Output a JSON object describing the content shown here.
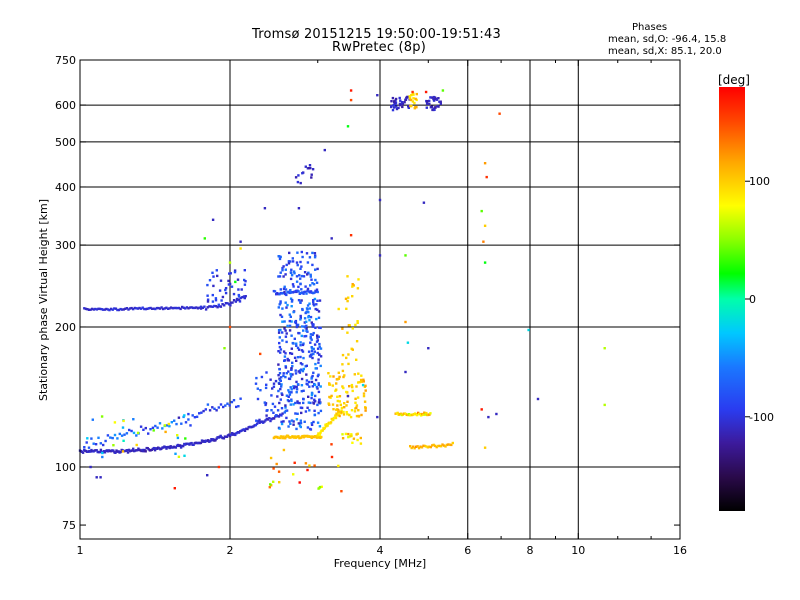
{
  "header": {
    "title_line1": "Tromsø 20151215 19:50:00-19:51:43",
    "title_line2": "RwPretec (8p)"
  },
  "stats": {
    "label": "Phases",
    "line_o": "mean, sd,O: -96.4, 15.8",
    "line_x": "mean, sd,X:  85.1, 20.0"
  },
  "chart_data": {
    "type": "scatter",
    "xlabel": "Frequency [MHz]",
    "ylabel": "Stationary phase Virtual Height [km]",
    "xscale": "log",
    "yscale": "log",
    "xlim": [
      1,
      16
    ],
    "ylim": [
      70,
      750
    ],
    "x_ticks": [
      1,
      2,
      4,
      6,
      8,
      10,
      16
    ],
    "x_tick_labels": [
      "1",
      "2",
      "4",
      "6",
      "8",
      "10",
      "16"
    ],
    "x_minor_ticks": [
      3,
      5,
      7,
      9,
      12,
      14
    ],
    "y_ticks": [
      75,
      100,
      200,
      300,
      400,
      500,
      600,
      750
    ],
    "y_tick_labels": [
      "75",
      "100",
      "200",
      "300",
      "400",
      "500",
      "600",
      "750"
    ],
    "x_gridlines": [
      2,
      4,
      6,
      8,
      10
    ],
    "y_gridlines": [
      100,
      200,
      300,
      400,
      500,
      600
    ],
    "grid": true,
    "colorbar": {
      "label": "[deg]",
      "min": -180,
      "max": 180,
      "ticks": [
        100,
        0,
        -100
      ],
      "tick_labels": [
        "100",
        "0",
        "-100"
      ]
    },
    "traces": [
      {
        "f0": 1.0,
        "f1": 2.05,
        "h0": 108,
        "h1": 118,
        "curve": 2.8,
        "n": 150,
        "jit": 0.012,
        "phase": -110,
        "pjit": 14
      },
      {
        "f0": 2.05,
        "f1": 2.55,
        "h0": 118,
        "h1": 130,
        "curve": 1.0,
        "n": 40,
        "jit": 0.015,
        "phase": -105,
        "pjit": 16
      },
      {
        "f0": 1.02,
        "f1": 1.75,
        "h0": 218,
        "h1": 220,
        "curve": 1.0,
        "n": 75,
        "jit": 0.008,
        "phase": -105,
        "pjit": 12
      },
      {
        "f0": 1.75,
        "f1": 2.15,
        "h0": 220,
        "h1": 232,
        "curve": 2.0,
        "n": 28,
        "jit": 0.012,
        "phase": -105,
        "pjit": 12
      },
      {
        "f0": 2.45,
        "f1": 3.0,
        "h0": 236,
        "h1": 238,
        "curve": 1.0,
        "n": 40,
        "jit": 0.015,
        "phase": -80,
        "pjit": 35
      },
      {
        "f0": 1.02,
        "f1": 1.65,
        "h0": 112,
        "h1": 126,
        "curve": 1.0,
        "n": 45,
        "jit": 0.035,
        "phase": -70,
        "pjit": 60
      },
      {
        "f0": 1.65,
        "f1": 2.1,
        "h0": 126,
        "h1": 140,
        "curve": 1.0,
        "n": 25,
        "jit": 0.04,
        "phase": -90,
        "pjit": 30
      },
      {
        "f0": 2.45,
        "f1": 3.05,
        "h0": 116,
        "h1": 116,
        "curve": 1.0,
        "n": 55,
        "jit": 0.008,
        "phase": 105,
        "pjit": 8
      },
      {
        "f0": 3.0,
        "f1": 3.35,
        "h0": 117,
        "h1": 132,
        "curve": 1.0,
        "n": 35,
        "jit": 0.015,
        "phase": 90,
        "pjit": 15
      },
      {
        "f0": 4.3,
        "f1": 5.05,
        "h0": 130,
        "h1": 130,
        "curve": 1.0,
        "n": 35,
        "jit": 0.01,
        "phase": 100,
        "pjit": 50
      },
      {
        "f0": 4.6,
        "f1": 5.6,
        "h0": 110,
        "h1": 112,
        "curve": 1.0,
        "n": 30,
        "jit": 0.012,
        "phase": 110,
        "pjit": 25
      }
    ],
    "clusters": [
      {
        "fmin": 2.5,
        "fmax": 3.05,
        "hmin": 120,
        "hmax": 230,
        "n": 340,
        "pmin": -115,
        "pmax": -45
      },
      {
        "fmin": 2.5,
        "fmax": 3.0,
        "hmin": 235,
        "hmax": 290,
        "n": 80,
        "pmin": -110,
        "pmax": -60
      },
      {
        "fmin": 2.25,
        "fmax": 2.55,
        "hmin": 125,
        "hmax": 160,
        "n": 35,
        "pmin": -110,
        "pmax": -70
      },
      {
        "fmin": 1.8,
        "fmax": 2.15,
        "hmin": 222,
        "hmax": 265,
        "n": 45,
        "pmin": -110,
        "pmax": -80
      },
      {
        "fmin": 3.15,
        "fmax": 3.75,
        "hmin": 128,
        "hmax": 160,
        "n": 90,
        "pmin": 85,
        "pmax": 120
      },
      {
        "fmin": 3.3,
        "fmax": 3.65,
        "hmin": 160,
        "hmax": 260,
        "n": 30,
        "pmin": 85,
        "pmax": 120
      },
      {
        "fmin": 3.35,
        "fmax": 3.7,
        "hmin": 112,
        "hmax": 118,
        "n": 16,
        "pmin": 70,
        "pmax": 120
      },
      {
        "fmin": 4.2,
        "fmax": 4.6,
        "hmin": 585,
        "hmax": 625,
        "n": 35,
        "pmin": -120,
        "pmax": -100
      },
      {
        "fmin": 4.55,
        "fmax": 4.75,
        "hmin": 590,
        "hmax": 635,
        "n": 18,
        "pmin": 80,
        "pmax": 120
      },
      {
        "fmin": 4.95,
        "fmax": 5.3,
        "hmin": 585,
        "hmax": 625,
        "n": 30,
        "pmin": -120,
        "pmax": -100
      },
      {
        "fmin": 2.7,
        "fmax": 3.0,
        "hmin": 400,
        "hmax": 450,
        "n": 14,
        "pmin": -120,
        "pmax": -100
      },
      {
        "fmin": 1.0,
        "fmax": 1.75,
        "hmin": 105,
        "hmax": 130,
        "n": 25,
        "pmin": -60,
        "pmax": 120
      },
      {
        "fmin": 2.4,
        "fmax": 3.4,
        "hmin": 88,
        "hmax": 112,
        "n": 25,
        "pmin": 40,
        "pmax": 180
      }
    ],
    "points": [
      {
        "x": 1.08,
        "y": 95,
        "p": -110
      },
      {
        "x": 1.1,
        "y": 95,
        "p": -110
      },
      {
        "x": 1.55,
        "y": 90,
        "p": 170
      },
      {
        "x": 1.8,
        "y": 96,
        "p": -110
      },
      {
        "x": 1.78,
        "y": 310,
        "p": 30
      },
      {
        "x": 1.85,
        "y": 340,
        "p": -110
      },
      {
        "x": 2.35,
        "y": 360,
        "p": -110
      },
      {
        "x": 2.1,
        "y": 295,
        "p": 90
      },
      {
        "x": 2.75,
        "y": 360,
        "p": -110
      },
      {
        "x": 3.1,
        "y": 480,
        "p": -110
      },
      {
        "x": 3.2,
        "y": 310,
        "p": -110
      },
      {
        "x": 3.5,
        "y": 315,
        "p": 160
      },
      {
        "x": 3.5,
        "y": 645,
        "p": 170
      },
      {
        "x": 3.45,
        "y": 540,
        "p": 20
      },
      {
        "x": 3.5,
        "y": 615,
        "p": 150
      },
      {
        "x": 3.95,
        "y": 630,
        "p": -110
      },
      {
        "x": 4.0,
        "y": 375,
        "p": -110
      },
      {
        "x": 4.0,
        "y": 285,
        "p": -110
      },
      {
        "x": 4.65,
        "y": 640,
        "p": 160
      },
      {
        "x": 4.95,
        "y": 640,
        "p": 170
      },
      {
        "x": 5.35,
        "y": 645,
        "p": 40
      },
      {
        "x": 4.9,
        "y": 370,
        "p": -110
      },
      {
        "x": 4.5,
        "y": 285,
        "p": 40
      },
      {
        "x": 4.5,
        "y": 205,
        "p": 120
      },
      {
        "x": 4.55,
        "y": 185,
        "p": -20
      },
      {
        "x": 5.0,
        "y": 180,
        "p": -110
      },
      {
        "x": 4.5,
        "y": 160,
        "p": -110
      },
      {
        "x": 6.5,
        "y": 450,
        "p": 120
      },
      {
        "x": 6.55,
        "y": 420,
        "p": 160
      },
      {
        "x": 6.4,
        "y": 355,
        "p": 40
      },
      {
        "x": 6.5,
        "y": 330,
        "p": 100
      },
      {
        "x": 6.45,
        "y": 305,
        "p": 130
      },
      {
        "x": 6.5,
        "y": 275,
        "p": 20
      },
      {
        "x": 6.95,
        "y": 575,
        "p": 150
      },
      {
        "x": 6.85,
        "y": 130,
        "p": -110
      },
      {
        "x": 6.4,
        "y": 133,
        "p": 170
      },
      {
        "x": 6.5,
        "y": 110,
        "p": 100
      },
      {
        "x": 6.6,
        "y": 128,
        "p": -110
      },
      {
        "x": 7.95,
        "y": 197,
        "p": -20
      },
      {
        "x": 8.3,
        "y": 140,
        "p": -110
      },
      {
        "x": 11.3,
        "y": 180,
        "p": 60
      },
      {
        "x": 11.3,
        "y": 136,
        "p": 60
      },
      {
        "x": 2.3,
        "y": 175,
        "p": 150
      },
      {
        "x": 2.0,
        "y": 200,
        "p": 150
      },
      {
        "x": 1.95,
        "y": 180,
        "p": 50
      },
      {
        "x": 1.9,
        "y": 100,
        "p": 160
      },
      {
        "x": 1.22,
        "y": 108,
        "p": 110
      },
      {
        "x": 1.05,
        "y": 100,
        "p": -110
      },
      {
        "x": 3.45,
        "y": 142,
        "p": -110
      },
      {
        "x": 3.7,
        "y": 150,
        "p": -20
      },
      {
        "x": 3.95,
        "y": 128,
        "p": -110
      },
      {
        "x": 2.05,
        "y": 250,
        "p": 20
      },
      {
        "x": 2.0,
        "y": 275,
        "p": 60
      },
      {
        "x": 2.1,
        "y": 305,
        "p": -110
      }
    ]
  }
}
